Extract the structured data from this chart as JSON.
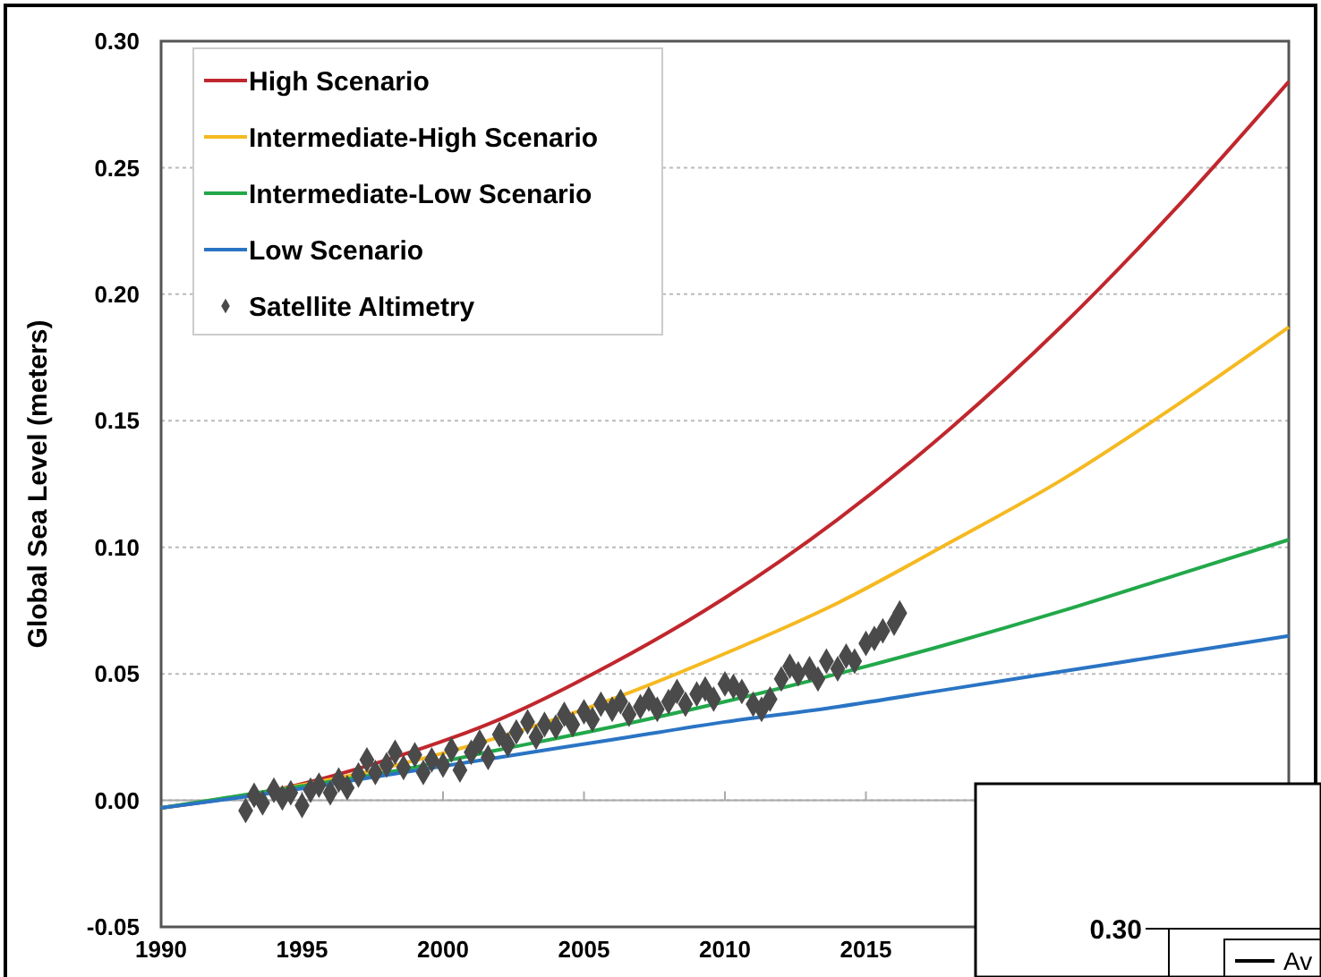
{
  "chart_data": {
    "type": "line",
    "ylabel": "Global Sea Level (meters)",
    "xlim": [
      1990,
      2030
    ],
    "xticks": [
      1990,
      1995,
      2000,
      2005,
      2010,
      2015
    ],
    "ylim": [
      -0.05,
      0.3
    ],
    "yticks": [
      {
        "value": -0.05,
        "label": "-0.05"
      },
      {
        "value": 0,
        "label": "0.00"
      },
      {
        "value": 0.05,
        "label": "0.05"
      },
      {
        "value": 0.1,
        "label": "0.10"
      },
      {
        "value": 0.15,
        "label": "0.15"
      },
      {
        "value": 0.2,
        "label": "0.20"
      },
      {
        "value": 0.25,
        "label": "0.25"
      },
      {
        "value": 0.3,
        "label": "0.30"
      }
    ],
    "grid": "y",
    "legend": "top left",
    "tick_labels": true,
    "x": [
      1990,
      1994,
      1998,
      2002,
      2006,
      2010,
      2014,
      2018,
      2022,
      2026,
      2030
    ],
    "series": [
      {
        "name": "High Scenario",
        "color": "#c0272d",
        "values": [
          -0.003,
          0.004,
          0.016,
          0.032,
          0.054,
          0.08,
          0.111,
          0.147,
          0.188,
          0.234,
          0.284
        ]
      },
      {
        "name": "Intermediate-High Scenario",
        "color": "#f5b921",
        "values": [
          -0.003,
          0.004,
          0.013,
          0.025,
          0.04,
          0.058,
          0.078,
          0.102,
          0.127,
          0.156,
          0.187
        ]
      },
      {
        "name": "Intermediate-Low Scenario",
        "color": "#22a84a",
        "values": [
          -0.003,
          0.004,
          0.011,
          0.02,
          0.029,
          0.039,
          0.05,
          0.062,
          0.075,
          0.089,
          0.103
        ]
      },
      {
        "name": "Low Scenario",
        "color": "#2a74c4",
        "values": [
          -0.003,
          0.003,
          0.01,
          0.017,
          0.024,
          0.031,
          0.037,
          0.044,
          0.051,
          0.058,
          0.065
        ]
      },
      {
        "name": "Satellite Altimetry",
        "type": "scatter",
        "marker": "diamond",
        "color": "#4a4a4a",
        "x": [
          1993.0,
          1993.3,
          1993.6,
          1994.0,
          1994.3,
          1994.6,
          1995.0,
          1995.3,
          1995.6,
          1996.0,
          1996.3,
          1996.6,
          1997.0,
          1997.3,
          1997.6,
          1998.0,
          1998.3,
          1998.6,
          1999.0,
          1999.3,
          1999.6,
          2000.0,
          2000.3,
          2000.6,
          2001.0,
          2001.3,
          2001.6,
          2002.0,
          2002.3,
          2002.6,
          2003.0,
          2003.3,
          2003.6,
          2004.0,
          2004.3,
          2004.6,
          2005.0,
          2005.3,
          2005.6,
          2006.0,
          2006.3,
          2006.6,
          2007.0,
          2007.3,
          2007.6,
          2008.0,
          2008.3,
          2008.6,
          2009.0,
          2009.3,
          2009.6,
          2010.0,
          2010.3,
          2010.6,
          2011.0,
          2011.3,
          2011.6,
          2012.0,
          2012.3,
          2012.6,
          2013.0,
          2013.3,
          2013.6,
          2014.0,
          2014.3,
          2014.6,
          2015.0,
          2015.3,
          2015.6,
          2016.0,
          2016.2
        ],
        "values": [
          -0.004,
          0.002,
          -0.001,
          0.004,
          0.001,
          0.003,
          -0.002,
          0.004,
          0.006,
          0.003,
          0.008,
          0.005,
          0.01,
          0.016,
          0.011,
          0.014,
          0.019,
          0.013,
          0.018,
          0.011,
          0.016,
          0.014,
          0.02,
          0.012,
          0.019,
          0.023,
          0.017,
          0.026,
          0.022,
          0.027,
          0.031,
          0.025,
          0.03,
          0.029,
          0.034,
          0.03,
          0.035,
          0.032,
          0.038,
          0.036,
          0.039,
          0.034,
          0.037,
          0.04,
          0.036,
          0.039,
          0.043,
          0.038,
          0.042,
          0.044,
          0.04,
          0.046,
          0.045,
          0.043,
          0.038,
          0.036,
          0.04,
          0.048,
          0.053,
          0.05,
          0.052,
          0.048,
          0.055,
          0.052,
          0.057,
          0.055,
          0.062,
          0.064,
          0.067,
          0.07,
          0.074
        ]
      }
    ],
    "annotations": [
      "0.30",
      "Av"
    ]
  }
}
